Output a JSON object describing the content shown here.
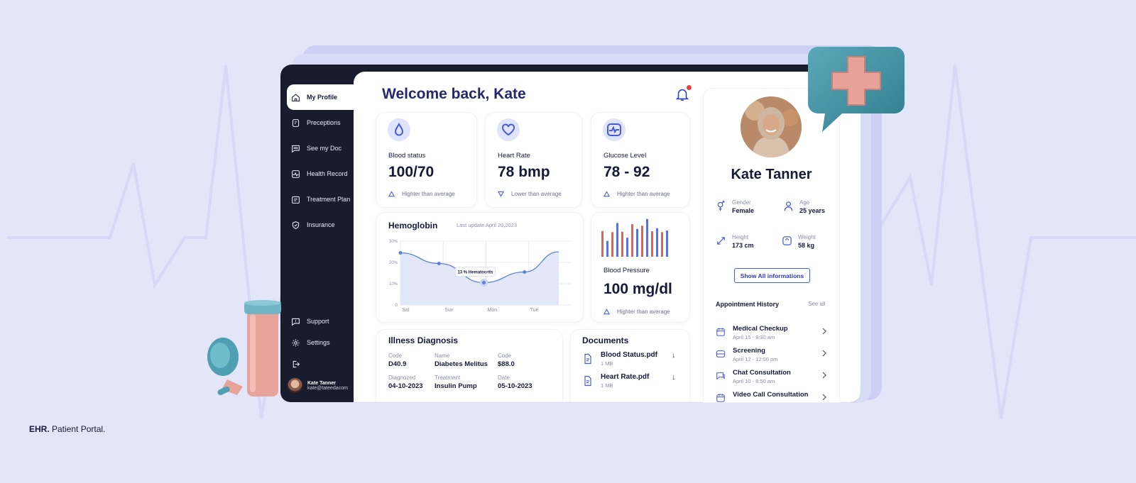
{
  "caption": {
    "brand": "EHR.",
    "rest": " Patient Portal."
  },
  "sidebar": {
    "items": [
      {
        "label": "My Profile",
        "icon": "home-icon"
      },
      {
        "label": "Preceptions",
        "icon": "prescription-icon"
      },
      {
        "label": "See my Doc",
        "icon": "chat-icon"
      },
      {
        "label": "Health Record",
        "icon": "health-record-icon"
      },
      {
        "label": "Treatment Plan",
        "icon": "treatment-plan-icon"
      },
      {
        "label": "Insurance",
        "icon": "shield-icon"
      }
    ],
    "bottom": [
      {
        "label": "Support",
        "icon": "support-icon"
      },
      {
        "label": "Settings",
        "icon": "gear-icon"
      }
    ],
    "user": {
      "name": "Kate Tanner",
      "email": "kate@tateedacom"
    }
  },
  "header": {
    "welcome": "Welcome back, Kate"
  },
  "stats": [
    {
      "label": "Blood status",
      "value": "100/70",
      "note": "Highter than average",
      "icon": "drop-icon"
    },
    {
      "label": "Heart Rate",
      "value": "78 bmp",
      "note": "Lower than average",
      "icon": "heart-icon"
    },
    {
      "label": "Glucose Level",
      "value": "78 - 92",
      "note": "Highter than average",
      "icon": "pulse-icon"
    }
  ],
  "chart_data": [
    {
      "type": "line",
      "title": "Hemoglobin",
      "subtitle": "Last update April 20,2023",
      "x": [
        "Sat",
        "Sun",
        "Mon",
        "Tue"
      ],
      "ytick_labels": [
        "0",
        "10%",
        "20%",
        "30%"
      ],
      "ylim": [
        0,
        30
      ],
      "series": [
        {
          "points": [
            [
              0,
              24.5
            ],
            [
              0.9,
              19.5
            ],
            [
              1.95,
              10.5
            ],
            [
              2.9,
              15.5
            ],
            [
              3.7,
              25
            ]
          ]
        }
      ],
      "highlight": {
        "label": "13 % Hematocrits"
      },
      "grid": true,
      "area_fill": true
    },
    {
      "type": "bar",
      "title": "Blood Pressure",
      "value": "100 mg/dl",
      "note": "Highter than average",
      "series": [
        {
          "color": "#d9665c",
          "values": [
            0.65,
            0.62,
            0.63,
            0.82,
            0.78,
            0.64,
            0.62
          ]
        },
        {
          "color": "#5b73d8",
          "values": [
            0.4,
            0.85,
            0.48,
            0.7,
            0.95,
            0.72,
            0.66
          ]
        }
      ]
    }
  ],
  "diagnosis": {
    "title": "Illness Diagnosis",
    "cells": [
      {
        "k": "Code",
        "v": "D40.9"
      },
      {
        "k": "Name",
        "v": "Diabetes Melitus"
      },
      {
        "k": "Code",
        "v": "$88.0"
      },
      {
        "k": "Diagnozed",
        "v": "04-10-2023"
      },
      {
        "k": "Treatment",
        "v": "Insulin Pump"
      },
      {
        "k": "Date",
        "v": "05-10-2023"
      }
    ]
  },
  "documents": {
    "title": "Documents",
    "items": [
      {
        "name": "Blood Status.pdf",
        "size": "1 MB"
      },
      {
        "name": "Heart Rate.pdf",
        "size": "1 MB"
      }
    ]
  },
  "profile": {
    "name": "Kate Tanner",
    "fields": [
      {
        "k": "Gender",
        "v": "Female",
        "icon": "gender-icon"
      },
      {
        "k": "Age",
        "v": "25 years",
        "icon": "person-icon"
      },
      {
        "k": "Height",
        "v": "173 cm",
        "icon": "height-icon"
      },
      {
        "k": "Weight",
        "v": "58 kg",
        "icon": "scale-icon"
      }
    ],
    "show_all": "Show All informations",
    "appointments_title": "Appointment History",
    "see_all": "See all",
    "appointments": [
      {
        "title": "Medical Checkup",
        "date": "April 15 - 9:30 am"
      },
      {
        "title": "Screening",
        "date": "April 12 - 12:00 pm"
      },
      {
        "title": "Chat Consultation",
        "date": "April 10 - 8:50 am"
      },
      {
        "title": "Video Call Consultation",
        "date": ""
      }
    ]
  },
  "colors": {
    "accent": "#4a59d9",
    "sidebar": "#181c2c",
    "background": "#e3e6f8",
    "bar_red": "#d9665c",
    "bar_blue": "#5b73d8"
  }
}
